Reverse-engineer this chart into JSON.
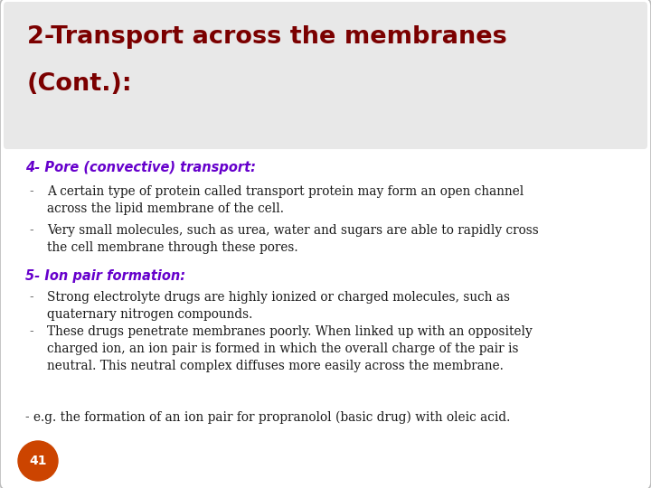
{
  "bg_color": "#ffffff",
  "border_color": "#bbbbbb",
  "title_bg_color": "#e8e8e8",
  "title_text_line1": "2-Transport across the membranes",
  "title_text_line2": "(Cont.):",
  "title_color": "#7b0000",
  "section1_heading": "4- Pore (convective) transport:",
  "section1_color": "#6600cc",
  "section1_bullets": [
    "A certain type of protein called transport protein may form an open channel\nacross the lipid membrane of the cell.",
    "Very small molecules, such as urea, water and sugars are able to rapidly cross\nthe cell membrane through these pores."
  ],
  "section2_heading": "5- Ion pair formation:",
  "section2_color": "#6600cc",
  "section2_bullets": [
    "Strong electrolyte drugs are highly ionized or charged molecules, such as\nquaternary nitrogen compounds.",
    "These drugs penetrate membranes poorly. When linked up with an oppositely\ncharged ion, an ion pair is formed in which the overall charge of the pair is\nneutral. This neutral complex diffuses more easily across the membrane."
  ],
  "section2_note": "- e.g. the formation of an ion pair for propranolol (basic drug) with oleic acid.",
  "bullet_color": "#1a1a1a",
  "dash_color": "#444444",
  "page_number": "41",
  "page_badge_bg": "#cc4400",
  "page_badge_fg": "#ffffff",
  "body_font_size": 9.8,
  "heading_font_size": 10.5,
  "title_font_size": 19.5
}
